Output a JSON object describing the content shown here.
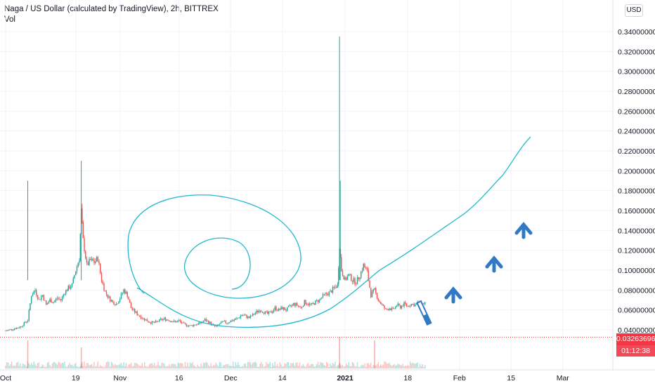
{
  "header": {
    "title": "Naga / US Dollar (calculated by TradingView), 2h, BITTREX",
    "volume_label": "Vol"
  },
  "currency": "USD",
  "price_label": "0.03263696",
  "countdown": "01:12:38",
  "colors": {
    "up": "#26a69a",
    "down": "#ef5350",
    "drawing": "#22b8cf",
    "arrow": "#3179c4",
    "price_line": "#f23645"
  },
  "chart_data": {
    "type": "line",
    "title": "Naga / US Dollar (calculated by TradingView), 2h, BITTREX",
    "xlabel": "",
    "ylabel": "",
    "ylim": [
      0.02,
      0.35
    ],
    "x_tick_labels": [
      "Oct",
      "19",
      "Nov",
      "16",
      "Dec",
      "14",
      "2021",
      "18",
      "Feb",
      "15",
      "Mar"
    ],
    "y_tick_labels": [
      "0.34000000",
      "0.32000000",
      "0.30000000",
      "0.28000000",
      "0.26000000",
      "0.24000000",
      "0.22000000",
      "0.20000000",
      "0.18000000",
      "0.16000000",
      "0.14000000",
      "0.12000000",
      "0.10000000",
      "0.08000000",
      "0.06000000",
      "0.04000000"
    ],
    "y_tick_values": [
      0.34,
      0.32,
      0.3,
      0.28,
      0.26,
      0.24,
      0.22,
      0.2,
      0.18,
      0.16,
      0.14,
      0.12,
      0.1,
      0.08,
      0.06,
      0.04
    ],
    "x_tick_days": [
      0,
      19,
      31,
      47,
      61,
      75,
      92,
      109,
      123,
      137,
      151
    ],
    "series": [
      {
        "values": [
          [
            0,
            0.039
          ],
          [
            2,
            0.041
          ],
          [
            4,
            0.043
          ],
          [
            6,
            0.05
          ],
          [
            7,
            0.075
          ],
          [
            8,
            0.08
          ],
          [
            9,
            0.07
          ],
          [
            10,
            0.075
          ],
          [
            11,
            0.065
          ],
          [
            12,
            0.07
          ],
          [
            13,
            0.068
          ],
          [
            14,
            0.072
          ],
          [
            15,
            0.07
          ],
          [
            16,
            0.078
          ],
          [
            17,
            0.082
          ],
          [
            18,
            0.085
          ],
          [
            19,
            0.1
          ],
          [
            20,
            0.112
          ],
          [
            20.5,
            0.16
          ],
          [
            21,
            0.13
          ],
          [
            22,
            0.105
          ],
          [
            23,
            0.11
          ],
          [
            24,
            0.108
          ],
          [
            25,
            0.112
          ],
          [
            26,
            0.09
          ],
          [
            27,
            0.078
          ],
          [
            28,
            0.072
          ],
          [
            29,
            0.068
          ],
          [
            30,
            0.066
          ],
          [
            31,
            0.072
          ],
          [
            32,
            0.08
          ],
          [
            33,
            0.075
          ],
          [
            34,
            0.062
          ],
          [
            35,
            0.058
          ],
          [
            36,
            0.055
          ],
          [
            37,
            0.052
          ],
          [
            38,
            0.05
          ],
          [
            39,
            0.048
          ],
          [
            40,
            0.047
          ],
          [
            41,
            0.048
          ],
          [
            42,
            0.05
          ],
          [
            43,
            0.051
          ],
          [
            44,
            0.05
          ],
          [
            45,
            0.049
          ],
          [
            46,
            0.048
          ],
          [
            47,
            0.049
          ],
          [
            48,
            0.046
          ],
          [
            49,
            0.045
          ],
          [
            50,
            0.044
          ],
          [
            51,
            0.045
          ],
          [
            52,
            0.046
          ],
          [
            53,
            0.047
          ],
          [
            54,
            0.05
          ],
          [
            55,
            0.048
          ],
          [
            56,
            0.045
          ],
          [
            57,
            0.043
          ],
          [
            58,
            0.046
          ],
          [
            59,
            0.048
          ],
          [
            60,
            0.047
          ],
          [
            61,
            0.049
          ],
          [
            62,
            0.05
          ],
          [
            63,
            0.052
          ],
          [
            64,
            0.055
          ],
          [
            65,
            0.054
          ],
          [
            66,
            0.052
          ],
          [
            67,
            0.055
          ],
          [
            68,
            0.058
          ],
          [
            69,
            0.06
          ],
          [
            70,
            0.058
          ],
          [
            71,
            0.056
          ],
          [
            72,
            0.058
          ],
          [
            73,
            0.062
          ],
          [
            74,
            0.06
          ],
          [
            75,
            0.062
          ],
          [
            76,
            0.06
          ],
          [
            77,
            0.063
          ],
          [
            78,
            0.066
          ],
          [
            79,
            0.065
          ],
          [
            80,
            0.062
          ],
          [
            81,
            0.068
          ],
          [
            82,
            0.066
          ],
          [
            83,
            0.065
          ],
          [
            84,
            0.068
          ],
          [
            85,
            0.07
          ],
          [
            86,
            0.074
          ],
          [
            87,
            0.076
          ],
          [
            88,
            0.078
          ],
          [
            89,
            0.082
          ],
          [
            90,
            0.085
          ],
          [
            90.5,
            0.125
          ],
          [
            91,
            0.1
          ],
          [
            92,
            0.09
          ],
          [
            93,
            0.095
          ],
          [
            94,
            0.09
          ],
          [
            95,
            0.088
          ],
          [
            96,
            0.095
          ],
          [
            97,
            0.105
          ],
          [
            98,
            0.098
          ],
          [
            99,
            0.075
          ],
          [
            100,
            0.08
          ],
          [
            101,
            0.07
          ],
          [
            102,
            0.065
          ],
          [
            103,
            0.06
          ],
          [
            104,
            0.062
          ],
          [
            105,
            0.06
          ],
          [
            106,
            0.065
          ],
          [
            107,
            0.063
          ],
          [
            108,
            0.066
          ],
          [
            109,
            0.064
          ],
          [
            110,
            0.066
          ],
          [
            111,
            0.065
          ],
          [
            112,
            0.068
          ],
          [
            113,
            0.066
          ],
          [
            114,
            0.068
          ]
        ]
      }
    ],
    "wick_highs": [
      [
        6,
        0.19
      ],
      [
        20.5,
        0.21
      ],
      [
        90.5,
        0.335
      ],
      [
        90.7,
        0.19
      ]
    ],
    "current_price": 0.03263696
  }
}
